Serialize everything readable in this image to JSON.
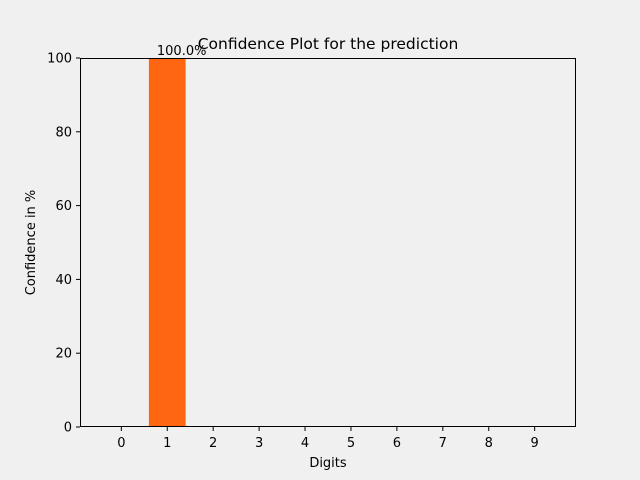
{
  "chart_data": {
    "type": "bar",
    "title": "Confidence Plot for the prediction",
    "xlabel": "Digits",
    "ylabel": "Confidence in %",
    "categories": [
      "0",
      "1",
      "2",
      "3",
      "4",
      "5",
      "6",
      "7",
      "8",
      "9"
    ],
    "values": [
      0,
      100,
      0,
      0,
      0,
      0,
      0,
      0,
      0,
      0
    ],
    "data_labels": [
      "",
      "100.0%",
      "",
      "",
      "",
      "",
      "",
      "",
      "",
      ""
    ],
    "ylim": [
      0,
      100
    ],
    "yticks": [
      0,
      20,
      40,
      60,
      80,
      100
    ],
    "bar_color": "#ff6611",
    "grid": false,
    "legend": "none"
  }
}
